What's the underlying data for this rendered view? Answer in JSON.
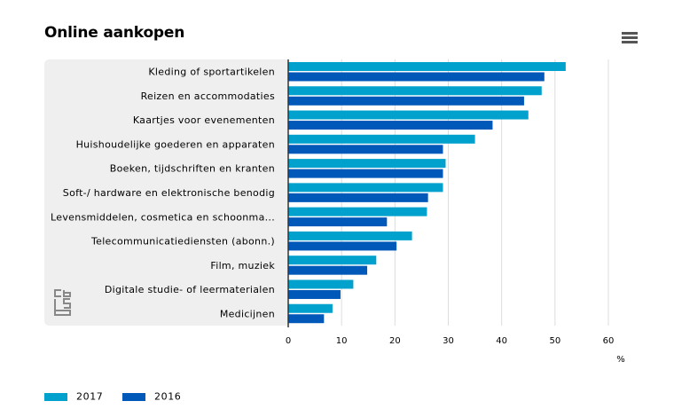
{
  "header": {
    "title": "Online aankopen",
    "menu_icon": "hamburger-menu-icon"
  },
  "colors": {
    "series_2017": "#00a1cd",
    "series_2016": "#0058b8",
    "panel_bg": "#efefef",
    "grid": "#dddddd"
  },
  "chart_data": {
    "type": "bar",
    "orientation": "horizontal",
    "title": "Online aankopen",
    "categories": [
      "Kleding of sportartikelen",
      "Reizen en accommodaties",
      "Kaartjes voor evenementen",
      "Huishoudelijke goederen en apparaten",
      "Boeken, tijdschriften en kranten",
      "Soft-/ hardware en elektronische benodig",
      "Levensmiddelen, cosmetica en schoonma...",
      "Telecommunicatiediensten (abonn.)",
      "Film, muziek",
      "Digitale studie- of leermaterialen",
      "Medicijnen"
    ],
    "series": [
      {
        "name": "2017",
        "color": "#00a1cd",
        "values": [
          52,
          47.5,
          45,
          35,
          29.5,
          29,
          26,
          23.2,
          16.5,
          12.2,
          8.3
        ]
      },
      {
        "name": "2016",
        "color": "#0058b8",
        "values": [
          48,
          44.2,
          38.3,
          29,
          29,
          26.2,
          18.5,
          20.3,
          14.8,
          9.8,
          6.7
        ]
      }
    ],
    "xlim": [
      0,
      60
    ],
    "xticks": [
      "0",
      "10",
      "20",
      "30",
      "40",
      "50",
      "60"
    ],
    "xunit": "%",
    "grid": true,
    "legend_position": "bottom-left"
  }
}
